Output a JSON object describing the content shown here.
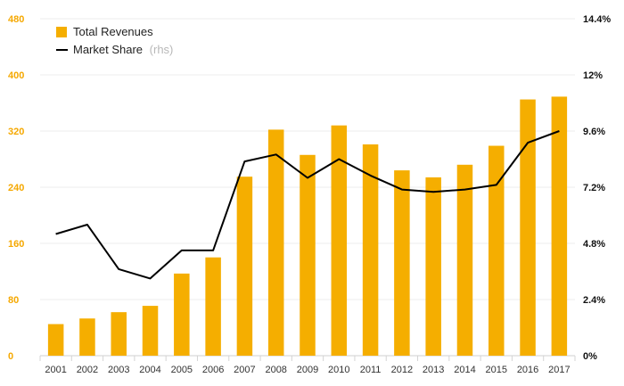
{
  "chart_data": {
    "type": "bar+line",
    "title": "",
    "xlabel": "",
    "ylabel": "",
    "categories": [
      "2001",
      "2002",
      "2003",
      "2004",
      "2005",
      "2006",
      "2007",
      "2008",
      "2009",
      "2010",
      "2011",
      "2012",
      "2013",
      "2014",
      "2015",
      "2016",
      "2017"
    ],
    "series": [
      {
        "name": "Total Revenues",
        "type": "bar",
        "axis": "left",
        "color": "#F5AE00",
        "values": [
          45,
          53,
          62,
          71,
          117,
          140,
          255,
          322,
          286,
          328,
          301,
          264,
          254,
          272,
          299,
          365,
          369
        ]
      },
      {
        "name": "Market Share",
        "type": "line",
        "axis": "right",
        "color": "#000000",
        "values": [
          5.2,
          5.6,
          3.7,
          3.3,
          4.5,
          4.5,
          8.3,
          8.6,
          7.6,
          8.4,
          7.7,
          7.1,
          7.0,
          7.1,
          7.3,
          9.1,
          9.6
        ]
      }
    ],
    "legend": {
      "position": "top-left",
      "items": [
        {
          "label": "Total Revenues",
          "suffix": ""
        },
        {
          "label": "Market Share",
          "suffix": "(rhs)"
        }
      ]
    },
    "y_left": {
      "lim": [
        0,
        480
      ],
      "ticks": [
        "0",
        "80",
        "160",
        "240",
        "320",
        "400",
        "480"
      ],
      "color": "#F5A800"
    },
    "y_right": {
      "lim": [
        0,
        14.4
      ],
      "ticks": [
        "0%",
        "2.4%",
        "4.8%",
        "7.2%",
        "9.6%",
        "12%",
        "14.4%"
      ],
      "color": "#111111"
    },
    "grid": true
  }
}
